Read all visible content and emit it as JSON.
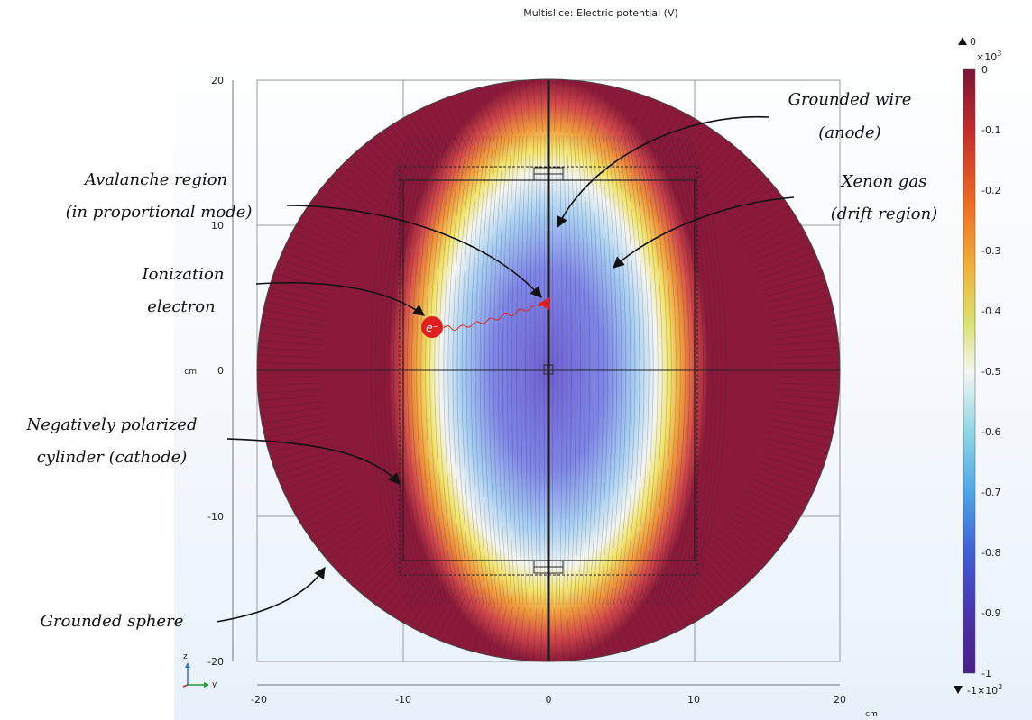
{
  "plot": {
    "title": "Multislice: Electric potential (V)",
    "x_unit": "cm",
    "y_unit": "cm",
    "x_ticks": [
      "-20",
      "-10",
      "0",
      "10",
      "20"
    ],
    "y_ticks": [
      "20",
      "10",
      "0",
      "-10",
      "-20"
    ],
    "triad": {
      "z": "z",
      "y": "y"
    }
  },
  "colorbar": {
    "max_label": "0",
    "min_label": "-1×10",
    "min_exp": "3",
    "scale_label": "×10",
    "scale_exp": "3",
    "ticks": [
      "0",
      "-0.1",
      "-0.2",
      "-0.3",
      "-0.4",
      "-0.5",
      "-0.6",
      "-0.7",
      "-0.8",
      "-0.9",
      "-1"
    ]
  },
  "annotations": {
    "grounded_wire": [
      "Grounded wire",
      "(anode)"
    ],
    "avalanche": [
      "Avalanche region",
      "(in proportional mode)"
    ],
    "xenon": [
      "Xenon gas",
      "(drift region)"
    ],
    "ionization": [
      "Ionization",
      "electron"
    ],
    "cathode": [
      "Negatively polarized",
      "cylinder (cathode)"
    ],
    "sphere": [
      "Grounded sphere"
    ],
    "electron_symbol": "e⁻"
  },
  "colors": {
    "field_ground": "#8b1a3a",
    "field_mid": "#f7f7f2",
    "field_low": "#3b2a90",
    "electron": "#e02020"
  }
}
